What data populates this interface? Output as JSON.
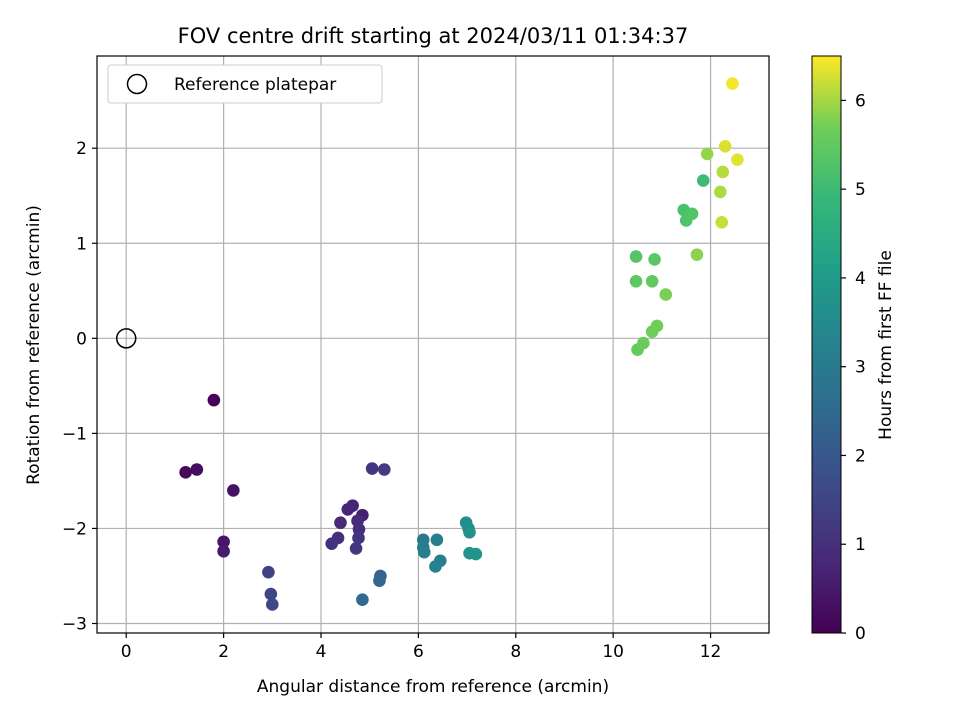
{
  "chart_data": {
    "type": "scatter",
    "title": "FOV centre drift starting at 2024/03/11 01:34:37",
    "xlabel": "Angular distance from reference (arcmin)",
    "ylabel": "Rotation from reference (arcmin)",
    "xlim": [
      -0.6,
      13.2
    ],
    "ylim": [
      -3.1,
      2.97
    ],
    "xticks": [
      0,
      2,
      4,
      6,
      8,
      10,
      12
    ],
    "yticks": [
      -3,
      -2,
      -1,
      0,
      1,
      2
    ],
    "grid": true,
    "legend": {
      "placement": "top-left",
      "entries": [
        "Reference platepar"
      ]
    },
    "reference_point": {
      "x": 0,
      "y": 0
    },
    "colorbar": {
      "label": "Hours from first FF file",
      "range": [
        0,
        6.5
      ],
      "ticks": [
        0,
        1,
        2,
        3,
        4,
        5,
        6
      ],
      "colormap": "viridis"
    },
    "points": [
      {
        "x": 1.8,
        "y": -0.65,
        "t": 0.05
      },
      {
        "x": 1.22,
        "y": -1.41,
        "t": 0.15
      },
      {
        "x": 1.45,
        "y": -1.38,
        "t": 0.25
      },
      {
        "x": 2.2,
        "y": -1.6,
        "t": 0.35
      },
      {
        "x": 2.0,
        "y": -2.14,
        "t": 0.45
      },
      {
        "x": 2.0,
        "y": -2.24,
        "t": 0.55
      },
      {
        "x": 4.85,
        "y": -1.86,
        "t": 0.65
      },
      {
        "x": 4.65,
        "y": -1.76,
        "t": 0.72
      },
      {
        "x": 4.55,
        "y": -1.8,
        "t": 0.78
      },
      {
        "x": 4.4,
        "y": -1.94,
        "t": 0.85
      },
      {
        "x": 4.75,
        "y": -1.92,
        "t": 0.9
      },
      {
        "x": 4.78,
        "y": -2.01,
        "t": 0.95
      },
      {
        "x": 4.35,
        "y": -2.1,
        "t": 1.0
      },
      {
        "x": 4.22,
        "y": -2.16,
        "t": 1.05
      },
      {
        "x": 4.77,
        "y": -2.1,
        "t": 1.1
      },
      {
        "x": 4.72,
        "y": -2.21,
        "t": 1.15
      },
      {
        "x": 5.05,
        "y": -1.37,
        "t": 1.2
      },
      {
        "x": 5.3,
        "y": -1.38,
        "t": 1.25
      },
      {
        "x": 2.92,
        "y": -2.46,
        "t": 1.4
      },
      {
        "x": 2.97,
        "y": -2.69,
        "t": 1.5
      },
      {
        "x": 3.0,
        "y": -2.8,
        "t": 1.55
      },
      {
        "x": 5.22,
        "y": -2.5,
        "t": 2.3
      },
      {
        "x": 5.2,
        "y": -2.55,
        "t": 2.4
      },
      {
        "x": 4.85,
        "y": -2.75,
        "t": 2.5
      },
      {
        "x": 6.1,
        "y": -2.12,
        "t": 3.0
      },
      {
        "x": 6.1,
        "y": -2.2,
        "t": 3.05
      },
      {
        "x": 6.12,
        "y": -2.25,
        "t": 3.1
      },
      {
        "x": 6.38,
        "y": -2.12,
        "t": 3.15
      },
      {
        "x": 6.45,
        "y": -2.34,
        "t": 3.2
      },
      {
        "x": 6.35,
        "y": -2.4,
        "t": 3.25
      },
      {
        "x": 6.98,
        "y": -1.94,
        "t": 3.6
      },
      {
        "x": 7.03,
        "y": -2.0,
        "t": 3.65
      },
      {
        "x": 7.05,
        "y": -2.04,
        "t": 3.7
      },
      {
        "x": 7.05,
        "y": -2.26,
        "t": 3.75
      },
      {
        "x": 7.18,
        "y": -2.27,
        "t": 3.8
      },
      {
        "x": 10.5,
        "y": -0.12,
        "t": 5.55
      },
      {
        "x": 10.62,
        "y": -0.05,
        "t": 5.6
      },
      {
        "x": 10.8,
        "y": 0.07,
        "t": 5.65
      },
      {
        "x": 10.9,
        "y": 0.13,
        "t": 5.7
      },
      {
        "x": 10.47,
        "y": 0.86,
        "t": 5.35
      },
      {
        "x": 10.85,
        "y": 0.83,
        "t": 5.4
      },
      {
        "x": 10.47,
        "y": 0.6,
        "t": 5.45
      },
      {
        "x": 10.8,
        "y": 0.6,
        "t": 5.5
      },
      {
        "x": 11.08,
        "y": 0.46,
        "t": 5.75
      },
      {
        "x": 11.45,
        "y": 1.35,
        "t": 5.2
      },
      {
        "x": 11.5,
        "y": 1.24,
        "t": 5.25
      },
      {
        "x": 11.62,
        "y": 1.31,
        "t": 5.3
      },
      {
        "x": 11.72,
        "y": 0.88,
        "t": 5.85
      },
      {
        "x": 11.85,
        "y": 1.66,
        "t": 5.0
      },
      {
        "x": 11.93,
        "y": 1.94,
        "t": 5.9
      },
      {
        "x": 12.2,
        "y": 1.54,
        "t": 6.05
      },
      {
        "x": 12.25,
        "y": 1.75,
        "t": 6.1
      },
      {
        "x": 12.23,
        "y": 1.22,
        "t": 6.2
      },
      {
        "x": 12.3,
        "y": 2.02,
        "t": 6.3
      },
      {
        "x": 12.55,
        "y": 1.88,
        "t": 6.35
      },
      {
        "x": 12.45,
        "y": 2.68,
        "t": 6.45
      }
    ]
  }
}
